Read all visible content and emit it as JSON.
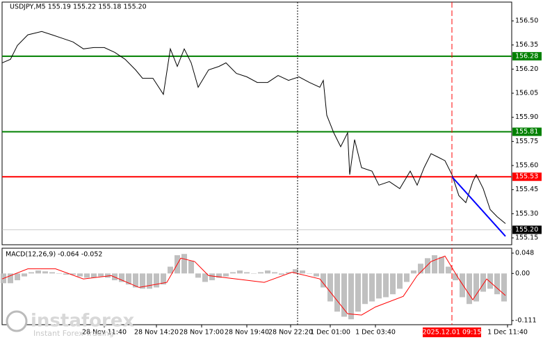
{
  "chart_data": [
    {
      "type": "line",
      "title": "USDJPY,M5  155.19 155.22 155.18 155.20",
      "color": "#000000",
      "x": [
        0,
        2.4,
        4.4,
        7.4,
        11.4,
        14.4,
        17.4,
        20.4,
        23.4,
        26.4,
        29.4,
        32.4,
        35.4,
        38.4,
        40.4,
        43.4,
        46.4,
        48.4,
        50.4,
        52.4,
        54.4,
        56.4,
        59.4,
        62.4,
        64.4,
        67.4,
        70.4,
        73.4,
        76.4,
        79.4,
        82.4,
        85.4,
        88.4,
        91.4,
        92.4,
        93.4,
        95.4,
        97.4,
        99.4,
        100,
        101.4,
        103.4,
        106.4,
        108.4,
        111.4,
        114.4,
        117.4,
        119.4,
        121.4,
        123.4,
        125.4,
        127.4,
        129.4,
        131.4,
        133.4,
        135.4,
        136.4,
        138.4,
        140.4,
        142.4,
        144.8
      ],
      "values": [
        156.239,
        156.261,
        156.347,
        156.413,
        156.434,
        156.413,
        156.391,
        156.369,
        156.326,
        156.334,
        156.334,
        156.304,
        156.261,
        156.195,
        156.143,
        156.143,
        156.043,
        156.326,
        156.217,
        156.326,
        156.239,
        156.087,
        156.195,
        156.217,
        156.239,
        156.173,
        156.152,
        156.117,
        156.117,
        156.16,
        156.13,
        156.152,
        156.117,
        156.087,
        156.13,
        155.913,
        155.804,
        155.717,
        155.804,
        155.543,
        155.761,
        155.587,
        155.565,
        155.478,
        155.5,
        155.456,
        155.565,
        155.478,
        155.587,
        155.674,
        155.652,
        155.63,
        155.543,
        155.413,
        155.369,
        155.5,
        155.543,
        155.456,
        155.326,
        155.282,
        155.239
      ],
      "xlim": [
        0,
        146.6
      ],
      "ylim": [
        155.107,
        156.617
      ],
      "yticks": [
        {
          "value": 156.5,
          "label": "156.50"
        },
        {
          "value": 156.35,
          "label": "156.35"
        },
        {
          "value": 156.2,
          "label": "156.20"
        },
        {
          "value": 156.05,
          "label": "156.05"
        },
        {
          "value": 155.9,
          "label": "155.90"
        },
        {
          "value": 155.75,
          "label": "155.75"
        },
        {
          "value": 155.6,
          "label": "155.60"
        },
        {
          "value": 155.45,
          "label": "155.45"
        },
        {
          "value": 155.3,
          "label": "155.30"
        },
        {
          "value": 155.15,
          "label": "155.15"
        }
      ],
      "levels": [
        {
          "value": 156.28,
          "color": "#008000"
        },
        {
          "value": 155.81,
          "color": "#008000"
        },
        {
          "value": 155.53,
          "color": "#ff0000"
        }
      ],
      "last_price": {
        "value": 155.2,
        "label": "155.20"
      },
      "trend_line": {
        "x": [
          129.4,
          144.8
        ],
        "values": [
          155.53,
          155.16
        ],
        "color": "#0000ff"
      },
      "vlines": [
        {
          "x": 85,
          "color": "#000000",
          "style": "dotted"
        },
        {
          "x": 129.4,
          "color": "#ff0000",
          "style": "dashed",
          "label": "2025.12.01 09:15"
        }
      ]
    },
    {
      "type": "macd",
      "title": "MACD(12,26,9) -0.064 -0.052",
      "color": "#c0c0c0",
      "x": [
        0.4,
        2.4,
        4.4,
        6.4,
        8.4,
        10.4,
        12.4,
        14.4,
        16.4,
        18.4,
        20.4,
        22.4,
        24.4,
        26.4,
        28.4,
        30.4,
        32.4,
        34.4,
        36.4,
        38.4,
        40.4,
        42.4,
        44.4,
        46.4,
        48.4,
        50.4,
        52.4,
        54.4,
        56.4,
        58.4,
        60.4,
        62.4,
        64.4,
        66.4,
        68.4,
        70.4,
        72.4,
        74.4,
        76.4,
        78.4,
        80.4,
        82.4,
        84.4,
        86.4,
        88.4,
        90.4,
        92.4,
        94.4,
        96.4,
        98.4,
        100.4,
        102.4,
        104.4,
        106.4,
        108.4,
        110.4,
        112.4,
        114.4,
        116.4,
        118.4,
        120.4,
        122.4,
        124.4,
        126.4,
        128.4,
        130.4,
        132.4,
        134.4,
        136.4,
        138.4,
        140.4,
        142.4,
        144.4
      ],
      "values": [
        -0.023,
        -0.023,
        -0.016,
        -0.007,
        0.003,
        0.007,
        0.005,
        0.003,
        0,
        -0.003,
        -0.003,
        -0.007,
        -0.01,
        -0.01,
        -0.007,
        -0.01,
        -0.016,
        -0.02,
        -0.026,
        -0.033,
        -0.036,
        -0.036,
        -0.033,
        -0.026,
        0.016,
        0.043,
        0.046,
        0.03,
        -0.01,
        -0.02,
        -0.016,
        -0.01,
        -0.007,
        0.003,
        0.007,
        0.003,
        0,
        0.003,
        0.007,
        0.003,
        -0.003,
        0.003,
        0.01,
        0.007,
        0,
        -0.007,
        -0.033,
        -0.066,
        -0.09,
        -0.102,
        -0.108,
        -0.09,
        -0.072,
        -0.066,
        -0.059,
        -0.056,
        -0.049,
        -0.036,
        -0.02,
        0.007,
        0.023,
        0.036,
        0.043,
        0.039,
        0.016,
        -0.016,
        -0.056,
        -0.072,
        -0.066,
        -0.043,
        -0.036,
        -0.049,
        -0.066
      ],
      "signal": {
        "color": "#ff0000",
        "x": [
          0,
          7.4,
          15.4,
          23.4,
          31.4,
          39.4,
          47.4,
          51.4,
          55.4,
          59.4,
          67.4,
          75.4,
          83.4,
          91.4,
          95.4,
          99.4,
          103.4,
          107.4,
          115.4,
          119.4,
          123.4,
          127.4,
          131.4,
          135.4,
          139.4,
          144.8
        ],
        "values": [
          -0.013,
          0.011,
          0.011,
          -0.013,
          -0.005,
          -0.033,
          -0.021,
          0.036,
          0.028,
          -0.005,
          -0.013,
          -0.021,
          0.003,
          -0.013,
          -0.054,
          -0.095,
          -0.098,
          -0.079,
          -0.054,
          -0.005,
          0.028,
          0.041,
          -0.013,
          -0.062,
          -0.013,
          -0.052
        ]
      },
      "xlim": [
        0,
        146.6
      ],
      "ylim": [
        -0.1208,
        0.0595
      ],
      "yticks": [
        0.048,
        {
          "value": 0,
          "label": "0.00"
        },
        -0.111
      ],
      "xticks": [
        {
          "value": 29.4,
          "label": "28 Nov 11:40"
        },
        {
          "value": 44.4,
          "label": "28 Nov 14:20"
        },
        {
          "value": 57.4,
          "label": "28 Nov 17:00"
        },
        {
          "value": 70.4,
          "label": "28 Nov 19:40"
        },
        {
          "value": 83,
          "label": "28 Nov 22:20"
        },
        {
          "value": 94.4,
          "label": "1 Dec 01:00"
        },
        {
          "value": 107.4,
          "label": "1 Dec 03:40"
        },
        {
          "value": 145.4,
          "label": "1 Dec 11:40"
        }
      ]
    }
  ],
  "watermark": {
    "name": "instaforex",
    "tagline": "Instant Forex Trading"
  }
}
